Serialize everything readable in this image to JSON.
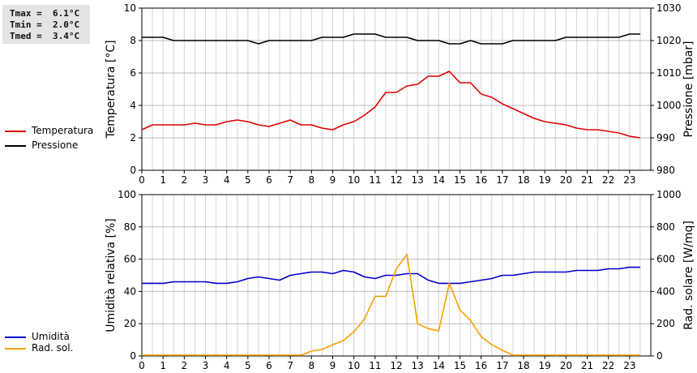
{
  "stats": {
    "tmax": "Tmax =  6.1°C",
    "tmin": "Tmin =  2.0°C",
    "tmed": "Tmed =  3.4°C"
  },
  "chart_data": [
    {
      "type": "line",
      "x_ticks": [
        0,
        1,
        2,
        3,
        4,
        5,
        6,
        7,
        8,
        9,
        10,
        11,
        12,
        13,
        14,
        15,
        16,
        17,
        18,
        19,
        20,
        21,
        22,
        23
      ],
      "xlim": [
        0,
        24
      ],
      "ylabel_left": "Temperatura [°C]",
      "ylim_left": [
        0,
        10
      ],
      "yticks_left": [
        0,
        2,
        4,
        6,
        8,
        10
      ],
      "ylabel_right": "Pressione [mbar]",
      "ylim_right": [
        980,
        1030
      ],
      "yticks_right": [
        980,
        990,
        1000,
        1010,
        1020,
        1030
      ],
      "grid": true,
      "legend_placement": "left",
      "series": [
        {
          "name": "Temperatura",
          "axis": "left",
          "color": "#e00000",
          "x": [
            0,
            0.5,
            1,
            1.5,
            2,
            2.5,
            3,
            3.5,
            4,
            4.5,
            5,
            5.5,
            6,
            6.5,
            7,
            7.5,
            8,
            8.5,
            9,
            9.5,
            10,
            10.5,
            11,
            11.5,
            12,
            12.5,
            13,
            13.5,
            14,
            14.5,
            15,
            15.5,
            16,
            16.5,
            17,
            17.5,
            18,
            18.5,
            19,
            19.5,
            20,
            20.5,
            21,
            21.5,
            22,
            22.5,
            23,
            23.5
          ],
          "y": [
            2.5,
            2.8,
            2.8,
            2.8,
            2.8,
            2.9,
            2.8,
            2.8,
            3.0,
            3.1,
            3.0,
            2.8,
            2.7,
            2.9,
            3.1,
            2.8,
            2.8,
            2.6,
            2.5,
            2.8,
            3.0,
            3.4,
            3.9,
            4.8,
            4.8,
            5.2,
            5.3,
            5.8,
            5.8,
            6.1,
            5.4,
            5.4,
            4.7,
            4.5,
            4.1,
            3.8,
            3.5,
            3.2,
            3.0,
            2.9,
            2.8,
            2.6,
            2.5,
            2.5,
            2.4,
            2.3,
            2.1,
            2.0
          ]
        },
        {
          "name": "Pressione",
          "axis": "right",
          "color": "#000000",
          "x": [
            0,
            0.5,
            1,
            1.5,
            2,
            2.5,
            3,
            3.5,
            4,
            4.5,
            5,
            5.5,
            6,
            6.5,
            7,
            7.5,
            8,
            8.5,
            9,
            9.5,
            10,
            10.5,
            11,
            11.5,
            12,
            12.5,
            13,
            13.5,
            14,
            14.5,
            15,
            15.5,
            16,
            16.5,
            17,
            17.5,
            18,
            18.5,
            19,
            19.5,
            20,
            20.5,
            21,
            21.5,
            22,
            22.5,
            23,
            23.5
          ],
          "y": [
            1021,
            1021,
            1021,
            1020,
            1020,
            1020,
            1020,
            1020,
            1020,
            1020,
            1020,
            1019,
            1020,
            1020,
            1020,
            1020,
            1020,
            1021,
            1021,
            1021,
            1022,
            1022,
            1022,
            1021,
            1021,
            1021,
            1020,
            1020,
            1020,
            1019,
            1019,
            1020,
            1019,
            1019,
            1019,
            1020,
            1020,
            1020,
            1020,
            1020,
            1021,
            1021,
            1021,
            1021,
            1021,
            1021,
            1022,
            1022
          ]
        }
      ]
    },
    {
      "type": "line",
      "x_ticks": [
        0,
        1,
        2,
        3,
        4,
        5,
        6,
        7,
        8,
        9,
        10,
        11,
        12,
        13,
        14,
        15,
        16,
        17,
        18,
        19,
        20,
        21,
        22,
        23
      ],
      "xlim": [
        0,
        24
      ],
      "ylabel_left": "Umidità relativa [%]",
      "ylim_left": [
        0,
        100
      ],
      "yticks_left": [
        0,
        20,
        40,
        60,
        80,
        100
      ],
      "ylabel_right": "Rad. solare [W/mq]",
      "ylim_right": [
        0,
        1000
      ],
      "yticks_right": [
        0,
        200,
        400,
        600,
        800,
        1000
      ],
      "grid": true,
      "legend_placement": "left",
      "series": [
        {
          "name": "Umidità",
          "axis": "left",
          "color": "#0000c8",
          "x": [
            0,
            0.5,
            1,
            1.5,
            2,
            2.5,
            3,
            3.5,
            4,
            4.5,
            5,
            5.5,
            6,
            6.5,
            7,
            7.5,
            8,
            8.5,
            9,
            9.5,
            10,
            10.5,
            11,
            11.5,
            12,
            12.5,
            13,
            13.5,
            14,
            14.5,
            15,
            15.5,
            16,
            16.5,
            17,
            17.5,
            18,
            18.5,
            19,
            19.5,
            20,
            20.5,
            21,
            21.5,
            22,
            22.5,
            23,
            23.5
          ],
          "y": [
            45,
            45,
            45,
            46,
            46,
            46,
            46,
            45,
            45,
            46,
            48,
            49,
            48,
            47,
            50,
            51,
            52,
            52,
            51,
            53,
            52,
            49,
            48,
            50,
            50,
            51,
            51,
            47,
            45,
            45,
            45,
            46,
            47,
            48,
            50,
            50,
            51,
            52,
            52,
            52,
            52,
            53,
            53,
            53,
            54,
            54,
            55,
            55
          ]
        },
        {
          "name": "Rad. sol.",
          "axis": "right",
          "color": "#f5a000",
          "x": [
            0,
            0.5,
            1,
            1.5,
            2,
            2.5,
            3,
            3.5,
            4,
            4.5,
            5,
            5.5,
            6,
            6.5,
            7,
            7.5,
            8,
            8.5,
            9,
            9.5,
            10,
            10.5,
            11,
            11.5,
            12,
            12.5,
            13,
            13.5,
            14,
            14.5,
            15,
            15.5,
            16,
            16.5,
            17,
            17.5,
            18,
            18.5,
            19,
            19.5,
            20,
            20.5,
            21,
            21.5,
            22,
            22.5,
            23,
            23.5
          ],
          "y": [
            5,
            5,
            5,
            5,
            5,
            5,
            5,
            5,
            5,
            5,
            5,
            5,
            5,
            5,
            5,
            5,
            30,
            40,
            70,
            95,
            150,
            230,
            370,
            370,
            540,
            630,
            200,
            170,
            155,
            450,
            285,
            220,
            120,
            70,
            35,
            5,
            5,
            5,
            5,
            5,
            5,
            5,
            5,
            5,
            5,
            5,
            5,
            5
          ]
        }
      ]
    }
  ]
}
